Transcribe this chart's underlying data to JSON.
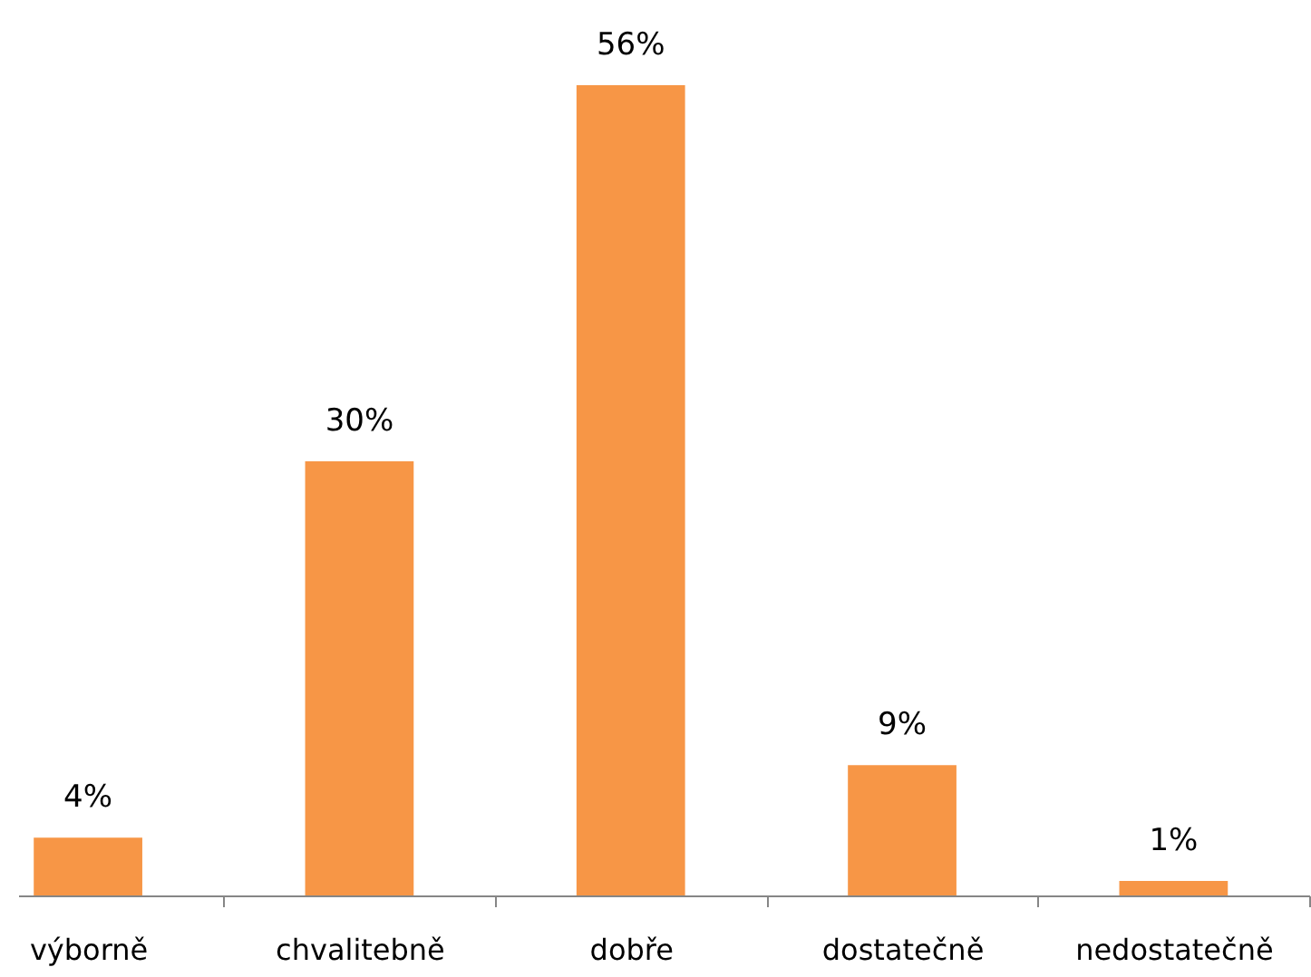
{
  "chart_data": {
    "type": "bar",
    "categories": [
      "výborně",
      "chvalitebně",
      "dobře",
      "dostatečně",
      "nedostatečně"
    ],
    "values": [
      4,
      30,
      56,
      9,
      1
    ],
    "value_labels": [
      "4%",
      "30%",
      "56%",
      "9%",
      "1%"
    ],
    "color": "#f79646"
  }
}
